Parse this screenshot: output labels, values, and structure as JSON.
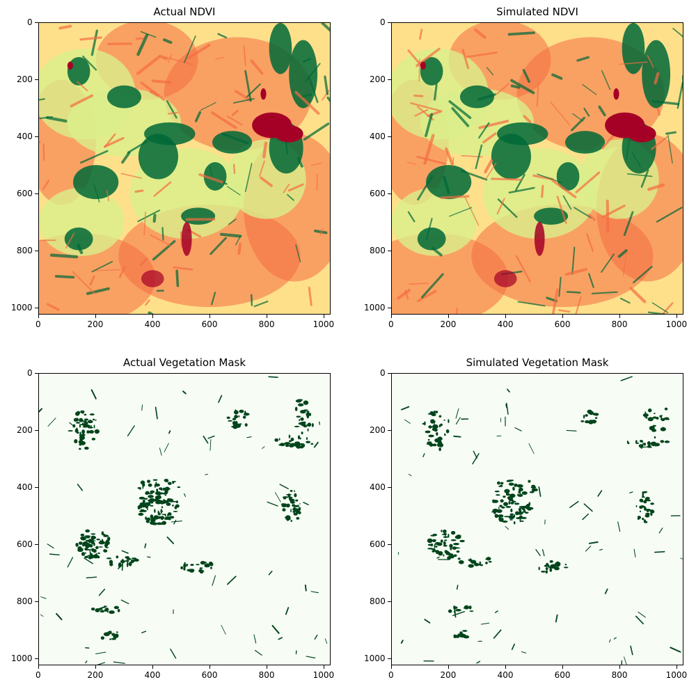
{
  "figure": {
    "tick_labels": [
      "0",
      "200",
      "400",
      "600",
      "800",
      "1000"
    ]
  },
  "panels": [
    {
      "title": "Actual NDVI"
    },
    {
      "title": "Simulated NDVI"
    },
    {
      "title": "Actual Vegetation Mask"
    },
    {
      "title": "Simulated Vegetation Mask"
    }
  ],
  "chart_data": [
    {
      "type": "heatmap",
      "title": "Actual NDVI",
      "colormap": "RdYlGn",
      "xlabel": "",
      "ylabel": "",
      "xlim": [
        0,
        1024
      ],
      "ylim": [
        1024,
        0
      ],
      "xticks": [
        0,
        200,
        400,
        600,
        800,
        1000
      ],
      "yticks": [
        0,
        200,
        400,
        600,
        800,
        1000
      ],
      "grid": false
    },
    {
      "type": "heatmap",
      "title": "Simulated NDVI",
      "colormap": "RdYlGn",
      "xlabel": "",
      "ylabel": "",
      "xlim": [
        0,
        1024
      ],
      "ylim": [
        1024,
        0
      ],
      "xticks": [
        0,
        200,
        400,
        600,
        800,
        1000
      ],
      "yticks": [
        0,
        200,
        400,
        600,
        800,
        1000
      ],
      "grid": false
    },
    {
      "type": "heatmap",
      "title": "Actual Vegetation Mask",
      "colormap": "Greens",
      "xlabel": "",
      "ylabel": "",
      "xlim": [
        0,
        1024
      ],
      "ylim": [
        1024,
        0
      ],
      "xticks": [
        0,
        200,
        400,
        600,
        800,
        1000
      ],
      "yticks": [
        0,
        200,
        400,
        600,
        800,
        1000
      ],
      "grid": false
    },
    {
      "type": "heatmap",
      "title": "Simulated Vegetation Mask",
      "colormap": "Greens",
      "xlabel": "",
      "ylabel": "",
      "xlim": [
        0,
        1024
      ],
      "ylim": [
        1024,
        0
      ],
      "xticks": [
        0,
        200,
        400,
        600,
        800,
        1000
      ],
      "yticks": [
        0,
        200,
        400,
        600,
        800,
        1000
      ],
      "grid": false
    }
  ],
  "colors": {
    "ndvi_low": "#a50026",
    "ndvi_mid_low": "#f46d43",
    "ndvi_mid": "#fee08b",
    "ndvi_mid_high": "#d9ef8b",
    "ndvi_high": "#006837",
    "mask_background": "#f7fcf5",
    "mask_vegetation": "#00441b"
  }
}
